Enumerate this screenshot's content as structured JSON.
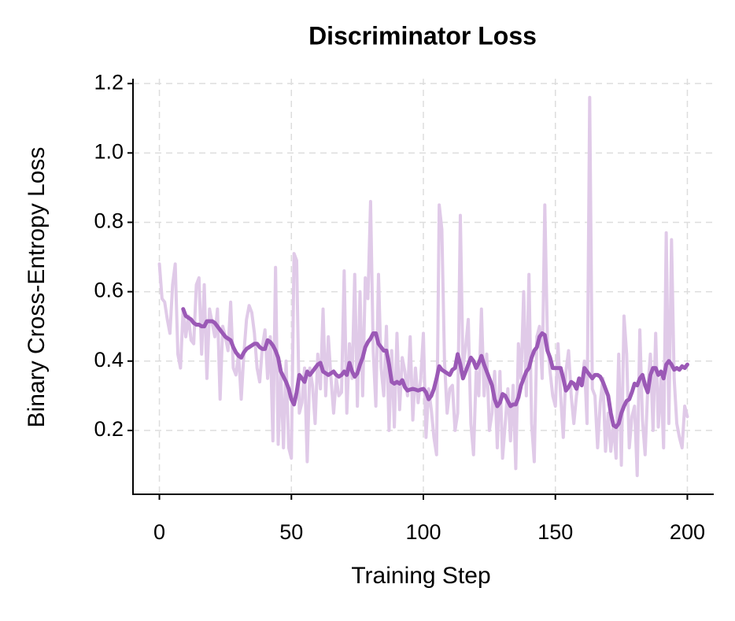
{
  "chart_data": {
    "type": "line",
    "title": "Discriminator Loss",
    "x_label": "Training Step",
    "y_label": "Binary Cross-Entropy Loss",
    "x": [
      0,
      1,
      2,
      3,
      4,
      5,
      6,
      7,
      8,
      9,
      10,
      11,
      12,
      13,
      14,
      15,
      16,
      17,
      18,
      19,
      20,
      21,
      22,
      23,
      24,
      25,
      26,
      27,
      28,
      29,
      30,
      31,
      32,
      33,
      34,
      35,
      36,
      37,
      38,
      39,
      40,
      41,
      42,
      43,
      44,
      45,
      46,
      47,
      48,
      49,
      50,
      51,
      52,
      53,
      54,
      55,
      56,
      57,
      58,
      59,
      60,
      61,
      62,
      63,
      64,
      65,
      66,
      67,
      68,
      69,
      70,
      71,
      72,
      73,
      74,
      75,
      76,
      77,
      78,
      79,
      80,
      81,
      82,
      83,
      84,
      85,
      86,
      87,
      88,
      89,
      90,
      91,
      92,
      93,
      94,
      95,
      96,
      97,
      98,
      99,
      100,
      101,
      102,
      103,
      104,
      105,
      106,
      107,
      108,
      109,
      110,
      111,
      112,
      113,
      114,
      115,
      116,
      117,
      118,
      119,
      120,
      121,
      122,
      123,
      124,
      125,
      126,
      127,
      128,
      129,
      130,
      131,
      132,
      133,
      134,
      135,
      136,
      137,
      138,
      139,
      140,
      141,
      142,
      143,
      144,
      145,
      146,
      147,
      148,
      149,
      150,
      151,
      152,
      153,
      154,
      155,
      156,
      157,
      158,
      159,
      160,
      161,
      162,
      163,
      164,
      165,
      166,
      167,
      168,
      169,
      170,
      171,
      172,
      173,
      174,
      175,
      176,
      177,
      178,
      179,
      180,
      181,
      182,
      183,
      184,
      185,
      186,
      187,
      188,
      189,
      190,
      191,
      192,
      193,
      194,
      195,
      196,
      197,
      198,
      199,
      200
    ],
    "series": [
      {
        "color": "#e0cae8",
        "values": [
          0.68,
          0.58,
          0.57,
          0.52,
          0.48,
          0.62,
          0.68,
          0.42,
          0.38,
          0.55,
          0.47,
          0.53,
          0.46,
          0.45,
          0.62,
          0.64,
          0.42,
          0.62,
          0.35,
          0.55,
          0.51,
          0.47,
          0.55,
          0.29,
          0.5,
          0.47,
          0.43,
          0.57,
          0.38,
          0.36,
          0.42,
          0.29,
          0.42,
          0.52,
          0.56,
          0.54,
          0.48,
          0.38,
          0.34,
          0.44,
          0.49,
          0.35,
          0.47,
          0.17,
          0.67,
          0.16,
          0.37,
          0.15,
          0.4,
          0.15,
          0.12,
          0.71,
          0.69,
          0.25,
          0.28,
          0.38,
          0.11,
          0.38,
          0.33,
          0.22,
          0.42,
          0.32,
          0.55,
          0.3,
          0.47,
          0.35,
          0.25,
          0.35,
          0.3,
          0.31,
          0.66,
          0.25,
          0.45,
          0.35,
          0.65,
          0.27,
          0.6,
          0.3,
          0.64,
          0.58,
          0.86,
          0.43,
          0.27,
          0.65,
          0.38,
          0.3,
          0.5,
          0.2,
          0.43,
          0.21,
          0.48,
          0.26,
          0.41,
          0.37,
          0.3,
          0.47,
          0.23,
          0.38,
          0.28,
          0.35,
          0.48,
          0.18,
          0.32,
          0.26,
          0.18,
          0.13,
          0.85,
          0.78,
          0.4,
          0.25,
          0.32,
          0.33,
          0.2,
          0.25,
          0.82,
          0.38,
          0.44,
          0.52,
          0.22,
          0.13,
          0.37,
          0.3,
          0.55,
          0.3,
          0.42,
          0.2,
          0.25,
          0.37,
          0.15,
          0.37,
          0.12,
          0.22,
          0.32,
          0.17,
          0.33,
          0.09,
          0.45,
          0.35,
          0.6,
          0.3,
          0.65,
          0.22,
          0.11,
          0.47,
          0.5,
          0.35,
          0.85,
          0.46,
          0.37,
          0.3,
          0.27,
          0.45,
          0.3,
          0.18,
          0.37,
          0.43,
          0.3,
          0.22,
          0.3,
          0.35,
          0.33,
          0.4,
          0.22,
          1.16,
          0.32,
          0.3,
          0.15,
          0.28,
          0.35,
          0.14,
          0.25,
          0.14,
          0.22,
          0.12,
          0.42,
          0.1,
          0.53,
          0.42,
          0.15,
          0.24,
          0.27,
          0.07,
          0.49,
          0.23,
          0.13,
          0.32,
          0.42,
          0.2,
          0.48,
          0.21,
          0.35,
          0.15,
          0.77,
          0.22,
          0.75,
          0.35,
          0.22,
          0.18,
          0.15,
          0.27,
          0.24
        ]
      },
      {
        "color": "#9b59b6",
        "values": [
          null,
          null,
          null,
          null,
          null,
          null,
          null,
          null,
          null,
          0.55,
          0.53,
          0.525,
          0.52,
          0.51,
          0.505,
          0.505,
          0.5,
          0.5,
          0.515,
          0.515,
          0.515,
          0.51,
          0.5,
          0.49,
          0.48,
          0.47,
          0.465,
          0.46,
          0.44,
          0.425,
          0.415,
          0.41,
          0.425,
          0.435,
          0.44,
          0.445,
          0.45,
          0.45,
          0.44,
          0.435,
          0.435,
          0.46,
          0.455,
          0.445,
          0.43,
          0.41,
          0.37,
          0.355,
          0.34,
          0.32,
          0.29,
          0.275,
          0.31,
          0.36,
          0.35,
          0.34,
          0.37,
          0.36,
          0.37,
          0.38,
          0.39,
          0.395,
          0.37,
          0.365,
          0.36,
          0.365,
          0.37,
          0.36,
          0.355,
          0.36,
          0.37,
          0.36,
          0.395,
          0.37,
          0.355,
          0.365,
          0.39,
          0.41,
          0.44,
          0.455,
          0.465,
          0.48,
          0.48,
          0.45,
          0.44,
          0.43,
          0.43,
          0.39,
          0.34,
          0.335,
          0.34,
          0.335,
          0.345,
          0.325,
          0.315,
          0.318,
          0.32,
          0.318,
          0.315,
          0.318,
          0.32,
          0.31,
          0.29,
          0.3,
          0.32,
          0.35,
          0.385,
          0.375,
          0.37,
          0.365,
          0.36,
          0.375,
          0.38,
          0.42,
          0.39,
          0.35,
          0.37,
          0.39,
          0.41,
          0.4,
          0.38,
          0.395,
          0.415,
          0.39,
          0.37,
          0.35,
          0.33,
          0.29,
          0.27,
          0.28,
          0.305,
          0.3,
          0.285,
          0.27,
          0.275,
          0.275,
          0.295,
          0.33,
          0.35,
          0.37,
          0.38,
          0.41,
          0.43,
          0.44,
          0.47,
          0.48,
          0.475,
          0.43,
          0.41,
          0.38,
          0.38,
          0.38,
          0.38,
          0.35,
          0.315,
          0.325,
          0.34,
          0.335,
          0.32,
          0.35,
          0.33,
          0.38,
          0.37,
          0.36,
          0.35,
          0.36,
          0.36,
          0.355,
          0.34,
          0.32,
          0.3,
          0.25,
          0.215,
          0.21,
          0.22,
          0.25,
          0.27,
          0.285,
          0.29,
          0.31,
          0.335,
          0.33,
          0.35,
          0.36,
          0.33,
          0.31,
          0.36,
          0.38,
          0.38,
          0.36,
          0.37,
          0.35,
          0.39,
          0.4,
          0.39,
          0.375,
          0.38,
          0.375,
          0.385,
          0.38,
          0.39
        ]
      }
    ],
    "xlim": [
      -10,
      210
    ],
    "ylim": [
      0.016,
      1.214
    ],
    "xticks": [
      0,
      50,
      100,
      150,
      200
    ],
    "yticks": [
      0.2,
      0.4,
      0.6,
      0.8,
      {
        "value": 1,
        "label": "1.0"
      },
      1.2
    ],
    "grid": true
  }
}
